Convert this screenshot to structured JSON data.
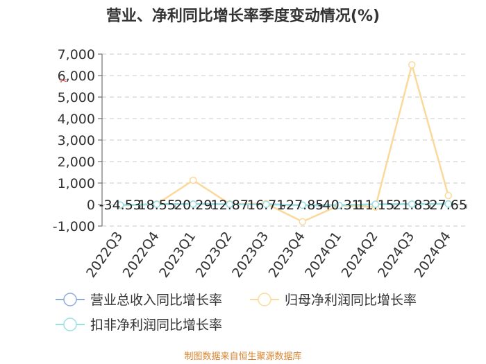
{
  "chart_data": {
    "type": "line",
    "title": "营业、净利同比增长率季度变动情况(%)",
    "categories": [
      "2022Q3",
      "2022Q4",
      "2023Q1",
      "2023Q2",
      "2023Q3",
      "2023Q4",
      "2024Q1",
      "2024Q2",
      "2024Q3",
      "2024Q4"
    ],
    "series": [
      {
        "name": "营业总收入同比增长率",
        "color": "#8faadc",
        "values": [
          -34.53,
          18.55,
          20.29,
          12.87,
          16.71,
          -27.85,
          -40.31,
          11.15,
          21.83,
          27.65
        ]
      },
      {
        "name": "归母净利润同比增长率",
        "color": "#fbd99a",
        "values": [
          -40,
          20,
          1130,
          30,
          40,
          -800,
          -40,
          -120,
          6500,
          420
        ]
      },
      {
        "name": "扣非净利润同比增长率",
        "color": "#9be0e3",
        "values": [
          -20,
          10,
          15,
          12,
          10,
          -30,
          -35,
          12,
          20,
          25
        ]
      }
    ],
    "data_labels": [
      "-34.53",
      "18.55",
      "20.29",
      "12.87",
      "16.71",
      "-27.85",
      "-40.31",
      "11.15",
      "21.83",
      "27.65"
    ],
    "y_ticks": [
      "7,000",
      "6,000",
      "5,000",
      "4,000",
      "3,000",
      "2,000",
      "1,000",
      "0",
      "-1,000"
    ],
    "ylim": [
      -1000,
      7000
    ],
    "grid": true,
    "legend_position": "bottom",
    "source": "制图数据来自恒生聚源数据库"
  }
}
